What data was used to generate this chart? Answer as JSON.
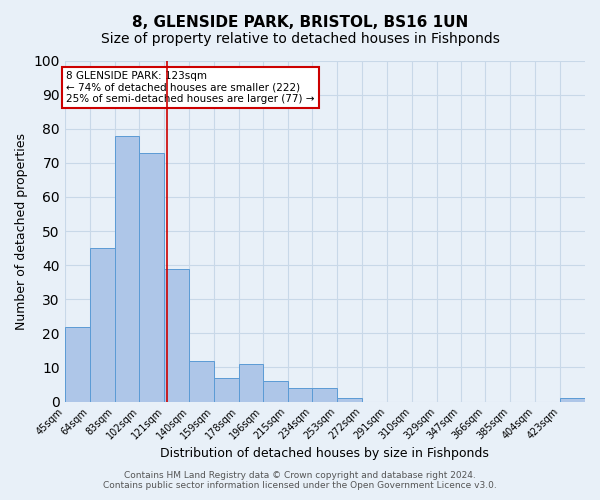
{
  "title": "8, GLENSIDE PARK, BRISTOL, BS16 1UN",
  "subtitle": "Size of property relative to detached houses in Fishponds",
  "xlabel": "Distribution of detached houses by size in Fishponds",
  "ylabel": "Number of detached properties",
  "bin_edges": [
    45,
    64,
    83,
    102,
    121,
    140,
    159,
    178,
    196,
    215,
    234,
    253,
    272,
    291,
    310,
    329,
    347,
    366,
    385,
    404,
    423
  ],
  "bar_heights": [
    22,
    45,
    78,
    73,
    39,
    12,
    7,
    11,
    6,
    4,
    4,
    1,
    0,
    0,
    0,
    0,
    0,
    0,
    0,
    0,
    1
  ],
  "bar_color": "#aec6e8",
  "bar_edge_color": "#5b9bd5",
  "grid_color": "#c8d8e8",
  "background_color": "#e8f0f8",
  "red_line_x": 123,
  "ylim": [
    0,
    100
  ],
  "annotation_title": "8 GLENSIDE PARK: 123sqm",
  "annotation_line1": "← 74% of detached houses are smaller (222)",
  "annotation_line2": "25% of semi-detached houses are larger (77) →",
  "annotation_box_color": "#ffffff",
  "annotation_border_color": "#cc0000",
  "tick_labels": [
    "45sqm",
    "64sqm",
    "83sqm",
    "102sqm",
    "121sqm",
    "140sqm",
    "159sqm",
    "178sqm",
    "196sqm",
    "215sqm",
    "234sqm",
    "253sqm",
    "272sqm",
    "291sqm",
    "310sqm",
    "329sqm",
    "347sqm",
    "366sqm",
    "385sqm",
    "404sqm",
    "423sqm"
  ],
  "footer_line1": "Contains HM Land Registry data © Crown copyright and database right 2024.",
  "footer_line2": "Contains public sector information licensed under the Open Government Licence v3.0.",
  "title_fontsize": 11,
  "subtitle_fontsize": 10,
  "tick_fontsize": 7,
  "ylabel_fontsize": 9,
  "xlabel_fontsize": 9,
  "footer_fontsize": 6.5
}
